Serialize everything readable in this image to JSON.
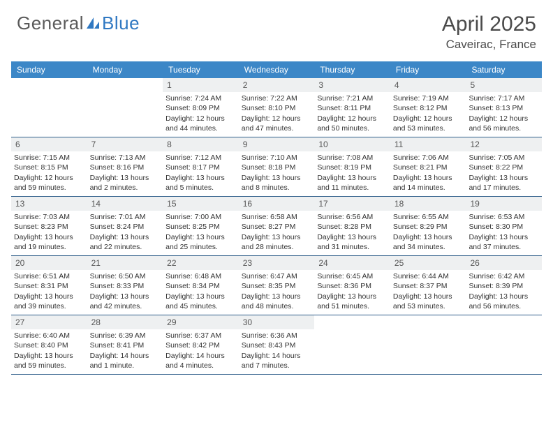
{
  "brand": {
    "text1": "General",
    "text2": "Blue",
    "text1_color": "#5a5a5a",
    "text2_color": "#2f78c2",
    "icon_color": "#2f78c2"
  },
  "title": "April 2025",
  "location": "Caveirac, France",
  "colors": {
    "header_bg": "#3c87c7",
    "header_text": "#ffffff",
    "daynum_bg": "#eef0f1",
    "row_border": "#2f5e8a",
    "body_text": "#333333",
    "background": "#ffffff"
  },
  "day_names": [
    "Sunday",
    "Monday",
    "Tuesday",
    "Wednesday",
    "Thursday",
    "Friday",
    "Saturday"
  ],
  "weeks": [
    [
      {
        "empty": true
      },
      {
        "empty": true
      },
      {
        "num": "1",
        "sunrise": "7:24 AM",
        "sunset": "8:09 PM",
        "daylight": "12 hours and 44 minutes."
      },
      {
        "num": "2",
        "sunrise": "7:22 AM",
        "sunset": "8:10 PM",
        "daylight": "12 hours and 47 minutes."
      },
      {
        "num": "3",
        "sunrise": "7:21 AM",
        "sunset": "8:11 PM",
        "daylight": "12 hours and 50 minutes."
      },
      {
        "num": "4",
        "sunrise": "7:19 AM",
        "sunset": "8:12 PM",
        "daylight": "12 hours and 53 minutes."
      },
      {
        "num": "5",
        "sunrise": "7:17 AM",
        "sunset": "8:13 PM",
        "daylight": "12 hours and 56 minutes."
      }
    ],
    [
      {
        "num": "6",
        "sunrise": "7:15 AM",
        "sunset": "8:15 PM",
        "daylight": "12 hours and 59 minutes."
      },
      {
        "num": "7",
        "sunrise": "7:13 AM",
        "sunset": "8:16 PM",
        "daylight": "13 hours and 2 minutes."
      },
      {
        "num": "8",
        "sunrise": "7:12 AM",
        "sunset": "8:17 PM",
        "daylight": "13 hours and 5 minutes."
      },
      {
        "num": "9",
        "sunrise": "7:10 AM",
        "sunset": "8:18 PM",
        "daylight": "13 hours and 8 minutes."
      },
      {
        "num": "10",
        "sunrise": "7:08 AM",
        "sunset": "8:19 PM",
        "daylight": "13 hours and 11 minutes."
      },
      {
        "num": "11",
        "sunrise": "7:06 AM",
        "sunset": "8:21 PM",
        "daylight": "13 hours and 14 minutes."
      },
      {
        "num": "12",
        "sunrise": "7:05 AM",
        "sunset": "8:22 PM",
        "daylight": "13 hours and 17 minutes."
      }
    ],
    [
      {
        "num": "13",
        "sunrise": "7:03 AM",
        "sunset": "8:23 PM",
        "daylight": "13 hours and 19 minutes."
      },
      {
        "num": "14",
        "sunrise": "7:01 AM",
        "sunset": "8:24 PM",
        "daylight": "13 hours and 22 minutes."
      },
      {
        "num": "15",
        "sunrise": "7:00 AM",
        "sunset": "8:25 PM",
        "daylight": "13 hours and 25 minutes."
      },
      {
        "num": "16",
        "sunrise": "6:58 AM",
        "sunset": "8:27 PM",
        "daylight": "13 hours and 28 minutes."
      },
      {
        "num": "17",
        "sunrise": "6:56 AM",
        "sunset": "8:28 PM",
        "daylight": "13 hours and 31 minutes."
      },
      {
        "num": "18",
        "sunrise": "6:55 AM",
        "sunset": "8:29 PM",
        "daylight": "13 hours and 34 minutes."
      },
      {
        "num": "19",
        "sunrise": "6:53 AM",
        "sunset": "8:30 PM",
        "daylight": "13 hours and 37 minutes."
      }
    ],
    [
      {
        "num": "20",
        "sunrise": "6:51 AM",
        "sunset": "8:31 PM",
        "daylight": "13 hours and 39 minutes."
      },
      {
        "num": "21",
        "sunrise": "6:50 AM",
        "sunset": "8:33 PM",
        "daylight": "13 hours and 42 minutes."
      },
      {
        "num": "22",
        "sunrise": "6:48 AM",
        "sunset": "8:34 PM",
        "daylight": "13 hours and 45 minutes."
      },
      {
        "num": "23",
        "sunrise": "6:47 AM",
        "sunset": "8:35 PM",
        "daylight": "13 hours and 48 minutes."
      },
      {
        "num": "24",
        "sunrise": "6:45 AM",
        "sunset": "8:36 PM",
        "daylight": "13 hours and 51 minutes."
      },
      {
        "num": "25",
        "sunrise": "6:44 AM",
        "sunset": "8:37 PM",
        "daylight": "13 hours and 53 minutes."
      },
      {
        "num": "26",
        "sunrise": "6:42 AM",
        "sunset": "8:39 PM",
        "daylight": "13 hours and 56 minutes."
      }
    ],
    [
      {
        "num": "27",
        "sunrise": "6:40 AM",
        "sunset": "8:40 PM",
        "daylight": "13 hours and 59 minutes."
      },
      {
        "num": "28",
        "sunrise": "6:39 AM",
        "sunset": "8:41 PM",
        "daylight": "14 hours and 1 minute."
      },
      {
        "num": "29",
        "sunrise": "6:37 AM",
        "sunset": "8:42 PM",
        "daylight": "14 hours and 4 minutes."
      },
      {
        "num": "30",
        "sunrise": "6:36 AM",
        "sunset": "8:43 PM",
        "daylight": "14 hours and 7 minutes."
      },
      {
        "empty": true
      },
      {
        "empty": true
      },
      {
        "empty": true
      }
    ]
  ],
  "labels": {
    "sunrise": "Sunrise:",
    "sunset": "Sunset:",
    "daylight": "Daylight:"
  }
}
